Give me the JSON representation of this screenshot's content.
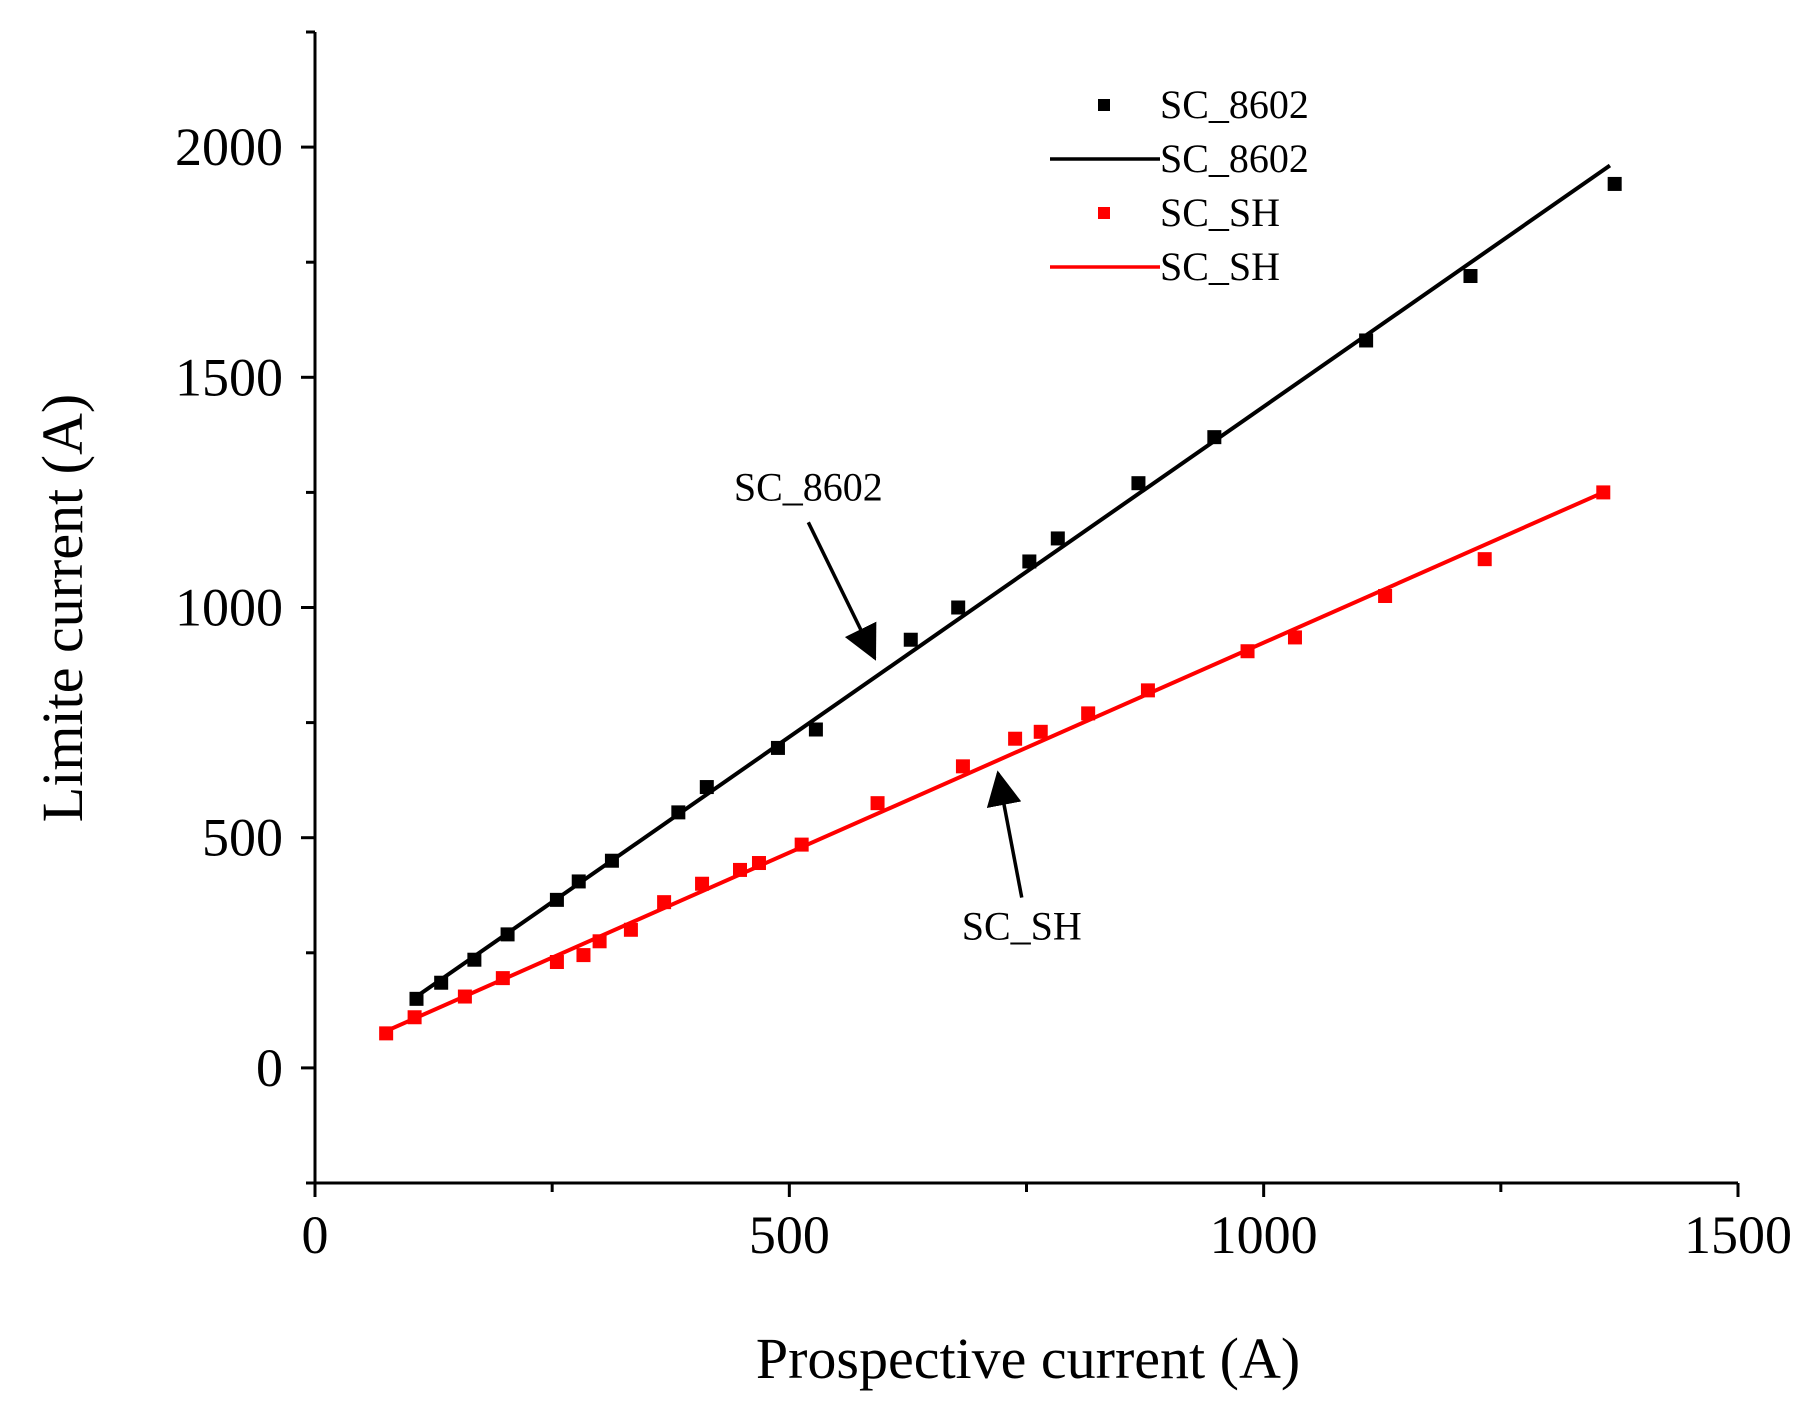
{
  "chart_data": {
    "type": "scatter",
    "title": "",
    "xlabel": "Prospective current (A)",
    "ylabel": "Limite current (A)",
    "xlim": [
      0,
      1500
    ],
    "ylim": [
      -250,
      2250
    ],
    "x_ticks": [
      0,
      500,
      1000,
      1500
    ],
    "y_ticks": [
      0,
      500,
      1000,
      1500,
      2000
    ],
    "x_tick_labels": [
      "0",
      "500",
      "1000",
      "1500"
    ],
    "y_tick_labels": [
      "0",
      "500",
      "1000",
      "1500",
      "2000"
    ],
    "grid": false,
    "legend_position": "top-right",
    "series": [
      {
        "name": "SC_8602",
        "kind": "points",
        "color": "#000000",
        "x": [
          107,
          133,
          168,
          203,
          255,
          278,
          313,
          383,
          413,
          488,
          528,
          628,
          678,
          753,
          783,
          868,
          948,
          1108,
          1218,
          1370
        ],
        "y": [
          150,
          185,
          235,
          290,
          365,
          405,
          450,
          555,
          610,
          695,
          735,
          930,
          1000,
          1100,
          1150,
          1270,
          1370,
          1580,
          1720,
          1920
        ]
      },
      {
        "name": "SC_8602",
        "kind": "line",
        "color": "#000000",
        "x": [
          107,
          1365
        ],
        "y": [
          155,
          1960
        ]
      },
      {
        "name": "SC_SH",
        "kind": "points",
        "color": "#ff0000",
        "x": [
          75,
          105,
          158,
          198,
          255,
          283,
          300,
          333,
          368,
          408,
          448,
          468,
          513,
          593,
          683,
          738,
          765,
          815,
          878,
          983,
          1033,
          1128,
          1233,
          1358
        ],
        "y": [
          75,
          110,
          155,
          195,
          230,
          245,
          275,
          300,
          360,
          400,
          430,
          445,
          485,
          575,
          655,
          715,
          730,
          770,
          820,
          905,
          935,
          1025,
          1105,
          1250
        ]
      },
      {
        "name": "SC_SH",
        "kind": "line",
        "color": "#ff0000",
        "x": [
          75,
          1358
        ],
        "y": [
          80,
          1250
        ]
      }
    ],
    "annotations": [
      {
        "text": "SC_8602",
        "arrow_from": [
          520,
          1185
        ],
        "arrow_to": [
          590,
          890
        ]
      },
      {
        "text": "SC_SH",
        "arrow_from": [
          745,
          370
        ],
        "arrow_to": [
          720,
          640
        ]
      }
    ]
  }
}
